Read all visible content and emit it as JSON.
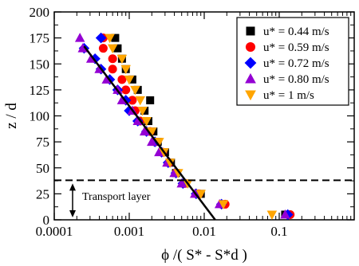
{
  "chart_data": {
    "type": "scatter",
    "title": "",
    "xlabel": "ϕ /( S* - S*d )",
    "ylabel": "z / d",
    "xscale": "log",
    "xlim": [
      0.0001,
      1
    ],
    "ylim": [
      0,
      200
    ],
    "x_ticks": [
      0.0001,
      0.001,
      0.01,
      0.1
    ],
    "x_tick_labels": [
      "0.0001",
      "0.001",
      "0.01",
      "0.1"
    ],
    "y_ticks": [
      0,
      25,
      50,
      75,
      100,
      125,
      150,
      175,
      200
    ],
    "y_tick_labels": [
      "0",
      "25",
      "50",
      "75",
      "100",
      "125",
      "150",
      "175",
      "200"
    ],
    "legend_position": "top-right",
    "grid": false,
    "series": [
      {
        "name": "u* = 0.44 m/s",
        "marker": "square",
        "color": "#000000",
        "points": [
          [
            0.00065,
            175
          ],
          [
            0.0007,
            165
          ],
          [
            0.0008,
            155
          ],
          [
            0.0009,
            145
          ],
          [
            0.0011,
            135
          ],
          [
            0.0013,
            125
          ],
          [
            0.0019,
            115
          ],
          [
            0.0016,
            105
          ],
          [
            0.0018,
            95
          ],
          [
            0.0021,
            85
          ],
          [
            0.0024,
            75
          ],
          [
            0.003,
            65
          ],
          [
            0.0036,
            55
          ],
          [
            0.0042,
            45
          ],
          [
            0.0055,
            35
          ],
          [
            0.009,
            25
          ],
          [
            0.018,
            15
          ],
          [
            0.12,
            5
          ]
        ]
      },
      {
        "name": "u* = 0.59 m/s",
        "marker": "circle",
        "color": "#ff0000",
        "points": [
          [
            0.00045,
            175
          ],
          [
            0.00045,
            165
          ],
          [
            0.0006,
            155
          ],
          [
            0.0006,
            145
          ],
          [
            0.0008,
            135
          ],
          [
            0.0009,
            125
          ],
          [
            0.0011,
            115
          ],
          [
            0.0012,
            105
          ],
          [
            0.0014,
            95
          ],
          [
            0.0019,
            85
          ],
          [
            0.0022,
            75
          ],
          [
            0.0028,
            65
          ],
          [
            0.0034,
            55
          ],
          [
            0.0042,
            45
          ],
          [
            0.0055,
            35
          ],
          [
            0.0085,
            25
          ],
          [
            0.019,
            15
          ],
          [
            0.14,
            5
          ]
        ]
      },
      {
        "name": "u* = 0.72 m/s",
        "marker": "diamond",
        "color": "#0000ff",
        "points": [
          [
            0.00042,
            175
          ],
          [
            0.00025,
            165
          ],
          [
            0.00035,
            155
          ],
          [
            0.00042,
            145
          ],
          [
            0.00055,
            135
          ],
          [
            0.0007,
            125
          ],
          [
            0.0009,
            115
          ],
          [
            0.001,
            105
          ],
          [
            0.0013,
            95
          ],
          [
            0.0017,
            85
          ],
          [
            0.0022,
            75
          ],
          [
            0.0027,
            65
          ],
          [
            0.0033,
            55
          ],
          [
            0.0042,
            45
          ],
          [
            0.0052,
            35
          ],
          [
            0.0078,
            25
          ],
          [
            0.017,
            15
          ],
          [
            0.13,
            5
          ]
        ]
      },
      {
        "name": "u* = 0.80 m/s",
        "marker": "triangle-up",
        "color": "#9400d3",
        "points": [
          [
            0.00022,
            175
          ],
          [
            0.00024,
            165
          ],
          [
            0.00031,
            155
          ],
          [
            0.0004,
            145
          ],
          [
            0.0005,
            135
          ],
          [
            0.0007,
            125
          ],
          [
            0.0008,
            115
          ],
          [
            0.0011,
            105
          ],
          [
            0.0013,
            95
          ],
          [
            0.0016,
            85
          ],
          [
            0.002,
            75
          ],
          [
            0.0025,
            65
          ],
          [
            0.0032,
            55
          ],
          [
            0.004,
            45
          ],
          [
            0.005,
            35
          ],
          [
            0.0075,
            25
          ],
          [
            0.016,
            15
          ],
          [
            0.12,
            5
          ]
        ]
      },
      {
        "name": "u* = 1 m/s",
        "marker": "triangle-down",
        "color": "#ffa500",
        "points": [
          [
            0.00055,
            175
          ],
          [
            0.0006,
            165
          ],
          [
            0.0008,
            155
          ],
          [
            0.0009,
            145
          ],
          [
            0.001,
            135
          ],
          [
            0.0012,
            125
          ],
          [
            0.0014,
            115
          ],
          [
            0.0015,
            105
          ],
          [
            0.0017,
            95
          ],
          [
            0.002,
            85
          ],
          [
            0.0025,
            75
          ],
          [
            0.0029,
            65
          ],
          [
            0.0035,
            55
          ],
          [
            0.0045,
            45
          ],
          [
            0.006,
            35
          ],
          [
            0.009,
            25
          ],
          [
            0.018,
            15
          ],
          [
            0.08,
            5
          ]
        ]
      }
    ],
    "fit_line": {
      "style": "solid",
      "color": "#000000",
      "points": [
        [
          0.00025,
          167
        ],
        [
          0.014,
          0
        ]
      ]
    },
    "reference_line": {
      "style": "dashed",
      "y": 38
    },
    "annotations": [
      {
        "text": "Transport layer",
        "arrow": "double-vertical",
        "y_range": [
          0,
          38
        ]
      }
    ]
  }
}
